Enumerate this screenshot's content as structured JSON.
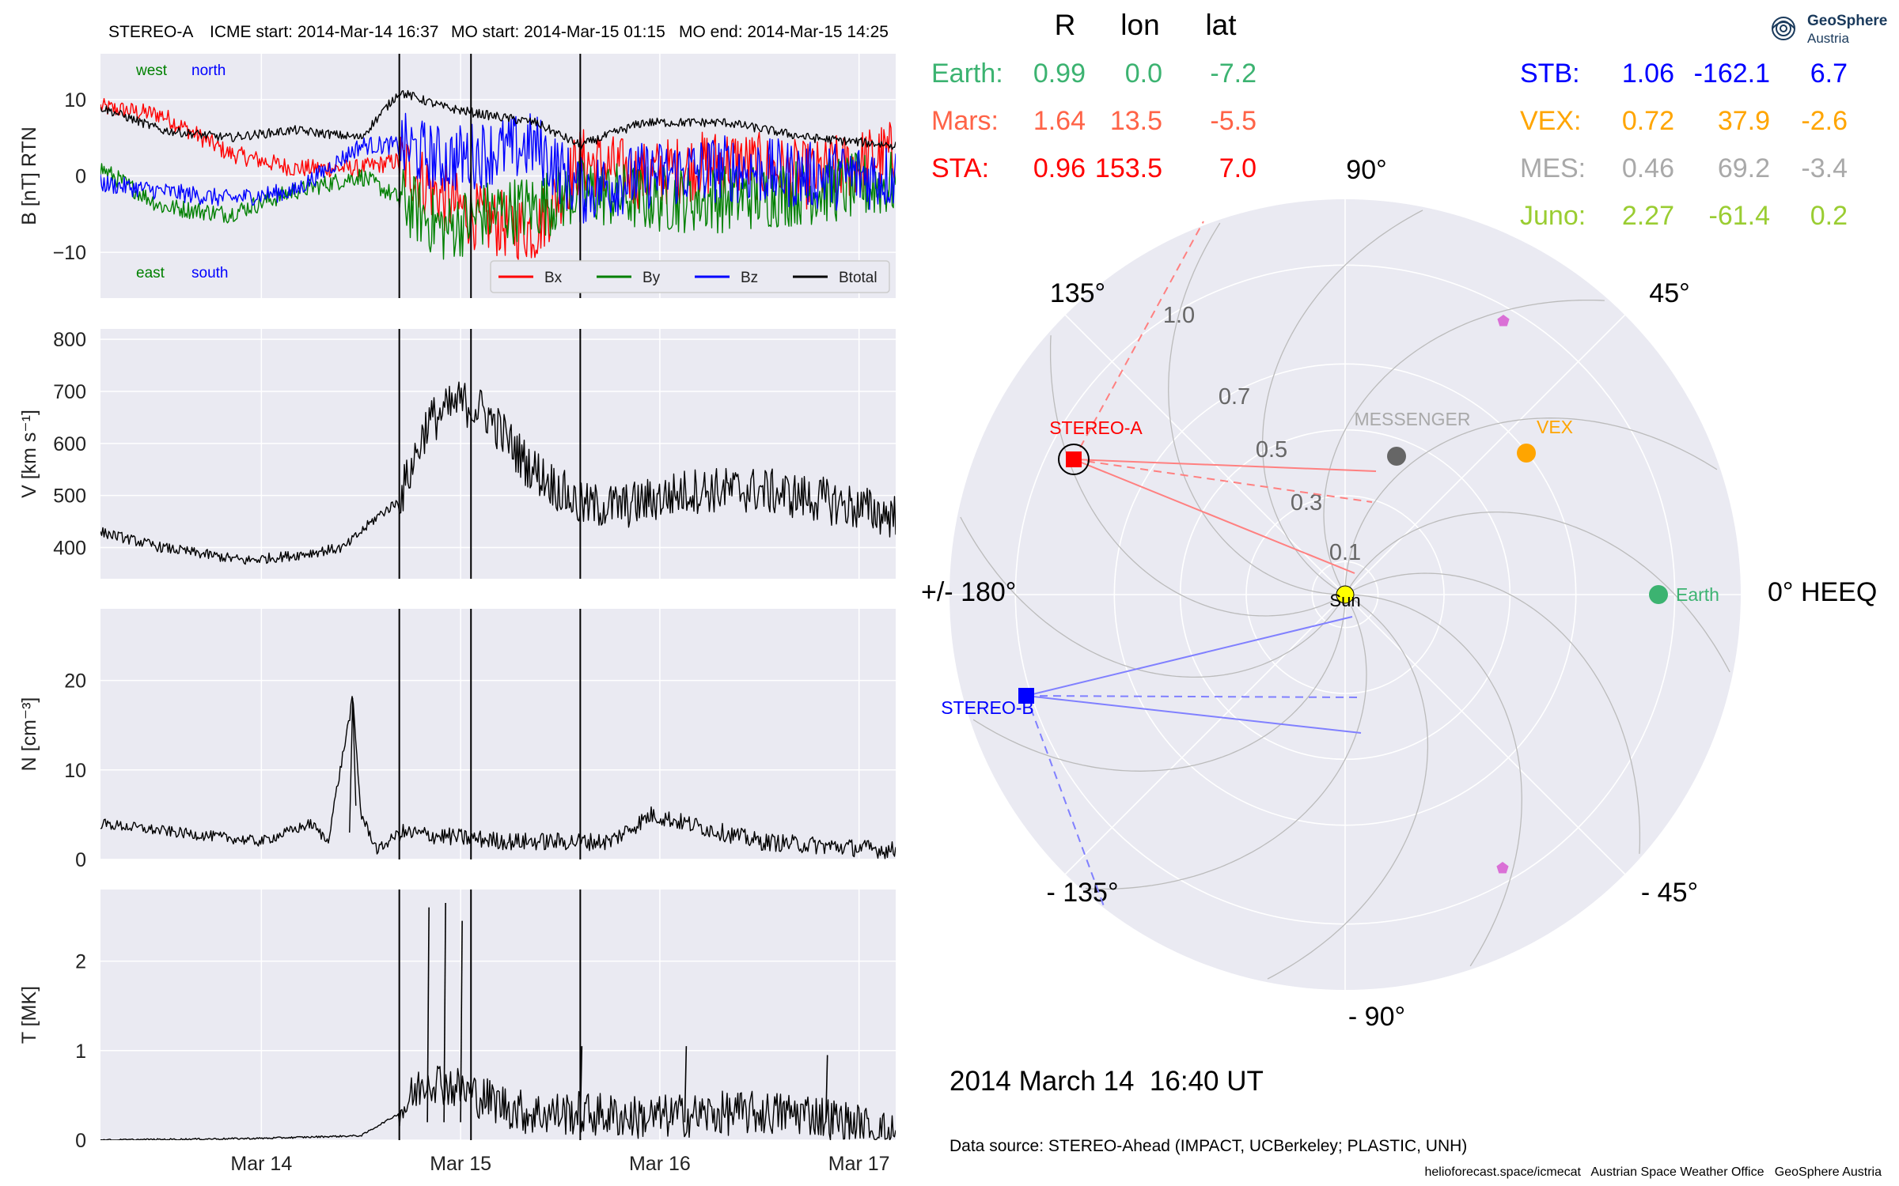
{
  "header": {
    "spacecraft": "STEREO-A",
    "icme_start": "ICME start: 2014-Mar-14 16:37",
    "mo_start": "MO start: 2014-Mar-15 01:15",
    "mo_end": "MO end: 2014-Mar-15 14:25"
  },
  "logo": {
    "line1": "GeoSphere",
    "line2": "Austria"
  },
  "colors": {
    "panel_bg": "#eaeaf2",
    "grid": "#ffffff",
    "bx": "#ff0000",
    "by": "#008000",
    "bz": "#0000ff",
    "btotal": "#000000",
    "earth": "#3cb371",
    "mars": "#ff6347",
    "sta": "#ff0000",
    "stb": "#0000ff",
    "vex": "#ffa500",
    "mes": "#a9a9a9",
    "juno": "#9acd32"
  },
  "position_table": {
    "headers": [
      "R",
      "lon",
      "lat"
    ],
    "left": [
      {
        "name": "Earth:",
        "r": "0.99",
        "lon": "0.0",
        "lat": "-7.2",
        "color": "#3cb371"
      },
      {
        "name": "Mars:",
        "r": "1.64",
        "lon": "13.5",
        "lat": "-5.5",
        "color": "#ff6347"
      },
      {
        "name": "STA:",
        "r": "0.96",
        "lon": "153.5",
        "lat": "7.0",
        "color": "#ff0000"
      }
    ],
    "right": [
      {
        "name": "STB:",
        "r": "1.06",
        "lon": "-162.1",
        "lat": "6.7",
        "color": "#0000ff"
      },
      {
        "name": "VEX:",
        "r": "0.72",
        "lon": "37.9",
        "lat": "-2.6",
        "color": "#ffa500"
      },
      {
        "name": "MES:",
        "r": "0.46",
        "lon": "69.2",
        "lat": "-3.4",
        "color": "#a9a9a9"
      },
      {
        "name": "Juno:",
        "r": "2.27",
        "lon": "-61.4",
        "lat": "0.2",
        "color": "#9acd32"
      }
    ]
  },
  "polar": {
    "angle_labels": [
      "90°",
      "45°",
      "0° HEEQ",
      "- 45°",
      "- 90°",
      "- 135°",
      "+/- 180°",
      "135°"
    ],
    "radial_labels": [
      "0.1",
      "0.3",
      "0.5",
      "0.7",
      "1.0"
    ],
    "bodies": [
      {
        "name": "Sun",
        "color": "#ffff00"
      },
      {
        "name": "Earth",
        "color": "#3cb371"
      },
      {
        "name": "VEX",
        "color": "#ffa500"
      },
      {
        "name": "MESSENGER",
        "color": "#a9a9a9"
      },
      {
        "name": "STEREO-A",
        "color": "#ff0000"
      },
      {
        "name": "STEREO-B",
        "color": "#0000ff"
      }
    ],
    "timestamp": "2014 March 14  16:40 UT"
  },
  "footer": {
    "data_source": "Data source: STEREO-Ahead (IMPACT, UCBerkeley; PLASTIC, UNH)",
    "credit": "helioforecast.space/icmecat   Austrian Space Weather Office   GeoSphere Austria"
  },
  "chart_data": [
    {
      "type": "line",
      "title": "",
      "ylabel": "B [nT] RTN",
      "ylim": [
        -16,
        16
      ],
      "yticks": [
        "10",
        "0",
        "−10"
      ],
      "xticks": [
        "Mar 14",
        "Mar 15",
        "Mar 16",
        "Mar 17"
      ],
      "x_range_days": [
        "2014-03-13 04:37",
        "2014-03-17 04:25"
      ],
      "event_lines": [
        "2014-03-14 16:37",
        "2014-03-15 01:15",
        "2014-03-15 14:25"
      ],
      "annotations": [
        "west",
        "north",
        "east",
        "south"
      ],
      "legend": "bottom-right",
      "series": [
        {
          "name": "Bx",
          "color": "#ff0000",
          "x": [
            "2014-03-13 04:37",
            "2014-03-13 12:00",
            "2014-03-13 20:00",
            "2014-03-14 04:00",
            "2014-03-14 12:00",
            "2014-03-14 16:37",
            "2014-03-14 22:00",
            "2014-03-15 03:00",
            "2014-03-15 09:00",
            "2014-03-15 14:25",
            "2014-03-15 22:00",
            "2014-03-16 08:00",
            "2014-03-16 18:00",
            "2014-03-17 04:25"
          ],
          "values": [
            9,
            8,
            3,
            1,
            1,
            2,
            -3,
            -6,
            -7,
            2,
            0,
            2,
            0,
            3
          ]
        },
        {
          "name": "By",
          "color": "#008000",
          "x": [
            "2014-03-13 04:37",
            "2014-03-13 12:00",
            "2014-03-13 20:00",
            "2014-03-14 04:00",
            "2014-03-14 12:00",
            "2014-03-14 16:37",
            "2014-03-14 22:00",
            "2014-03-15 03:00",
            "2014-03-15 09:00",
            "2014-03-15 14:25",
            "2014-03-15 22:00",
            "2014-03-16 08:00",
            "2014-03-16 18:00",
            "2014-03-17 04:25"
          ],
          "values": [
            1,
            -4,
            -5,
            -2,
            0,
            -3,
            -7,
            -5,
            -4,
            -2,
            -3,
            -3,
            -2,
            -1
          ]
        },
        {
          "name": "Bz",
          "color": "#0000ff",
          "x": [
            "2014-03-13 04:37",
            "2014-03-13 12:00",
            "2014-03-13 20:00",
            "2014-03-14 04:00",
            "2014-03-14 12:00",
            "2014-03-14 16:37",
            "2014-03-14 22:00",
            "2014-03-15 03:00",
            "2014-03-15 09:00",
            "2014-03-15 14:25",
            "2014-03-15 22:00",
            "2014-03-16 08:00",
            "2014-03-16 18:00",
            "2014-03-17 04:25"
          ],
          "values": [
            -1,
            -2,
            -3,
            -2,
            4,
            4,
            2,
            3,
            4,
            -2,
            0,
            1,
            0,
            0
          ]
        },
        {
          "name": "Btotal",
          "color": "#000000",
          "x": [
            "2014-03-13 04:37",
            "2014-03-13 12:00",
            "2014-03-13 20:00",
            "2014-03-14 04:00",
            "2014-03-14 12:00",
            "2014-03-14 16:37",
            "2014-03-14 22:00",
            "2014-03-15 03:00",
            "2014-03-15 09:00",
            "2014-03-15 14:25",
            "2014-03-15 22:00",
            "2014-03-16 08:00",
            "2014-03-16 18:00",
            "2014-03-17 04:25"
          ],
          "values": [
            9,
            6,
            5,
            6,
            5,
            11,
            9,
            8,
            7,
            4,
            7,
            7,
            5,
            4
          ]
        }
      ]
    },
    {
      "type": "line",
      "ylabel": "V [km s⁻¹]",
      "ylim": [
        340,
        820
      ],
      "yticks": [
        "800",
        "700",
        "600",
        "500",
        "400"
      ],
      "xticks": [
        "Mar 14",
        "Mar 15",
        "Mar 16",
        "Mar 17"
      ],
      "series": [
        {
          "name": "V",
          "color": "#000000",
          "x": [
            "2014-03-13 04:37",
            "2014-03-13 12:00",
            "2014-03-13 22:00",
            "2014-03-14 04:00",
            "2014-03-14 10:00",
            "2014-03-14 14:00",
            "2014-03-14 16:37",
            "2014-03-14 20:00",
            "2014-03-15 00:00",
            "2014-03-15 03:00",
            "2014-03-15 08:00",
            "2014-03-15 14:25",
            "2014-03-15 20:00",
            "2014-03-16 04:00",
            "2014-03-16 12:00",
            "2014-03-16 20:00",
            "2014-03-17 04:25"
          ],
          "values": [
            430,
            400,
            375,
            385,
            400,
            460,
            490,
            640,
            680,
            660,
            560,
            480,
            480,
            510,
            510,
            490,
            460
          ]
        }
      ]
    },
    {
      "type": "line",
      "ylabel": "N [cm⁻³]",
      "ylim": [
        0,
        28
      ],
      "yticks": [
        "20",
        "10",
        "0"
      ],
      "xticks": [
        "Mar 14",
        "Mar 15",
        "Mar 16",
        "Mar 17"
      ],
      "series": [
        {
          "name": "N",
          "color": "#000000",
          "x": [
            "2014-03-13 04:37",
            "2014-03-13 14:00",
            "2014-03-14 00:00",
            "2014-03-14 06:00",
            "2014-03-14 08:00",
            "2014-03-14 11:00",
            "2014-03-14 12:00",
            "2014-03-14 14:00",
            "2014-03-14 16:37",
            "2014-03-15 06:00",
            "2014-03-15 18:00",
            "2014-03-15 23:00",
            "2014-03-16 12:00",
            "2014-03-17 04:25"
          ],
          "values": [
            4,
            3,
            2,
            4,
            2,
            18,
            5,
            1,
            3,
            2,
            2,
            5,
            2,
            1
          ]
        }
      ]
    },
    {
      "type": "line",
      "ylabel": "T [MK]",
      "ylim": [
        0,
        2.8
      ],
      "yticks": [
        "2",
        "1",
        "0"
      ],
      "xticks": [
        "Mar 14",
        "Mar 15",
        "Mar 16",
        "Mar 17"
      ],
      "series": [
        {
          "name": "T",
          "color": "#000000",
          "x": [
            "2014-03-13 04:37",
            "2014-03-14 00:00",
            "2014-03-14 12:00",
            "2014-03-14 16:37",
            "2014-03-14 20:00",
            "2014-03-15 02:00",
            "2014-03-15 08:00",
            "2014-03-15 14:25",
            "2014-03-15 22:00",
            "2014-03-16 08:00",
            "2014-03-16 18:00",
            "2014-03-17 04:25"
          ],
          "values": [
            0,
            0.02,
            0.05,
            0.3,
            0.7,
            0.5,
            0.3,
            0.3,
            0.25,
            0.3,
            0.3,
            0.05
          ]
        },
        {
          "name": "T spikes",
          "color": "#000000",
          "x": [
            "2014-03-14 20:00",
            "2014-03-14 22:00",
            "2014-03-15 00:00",
            "2014-03-15 14:25",
            "2014-03-16 03:00",
            "2014-03-16 20:00"
          ],
          "values": [
            2.6,
            2.65,
            2.45,
            1.05,
            1.05,
            0.95
          ]
        }
      ]
    }
  ]
}
